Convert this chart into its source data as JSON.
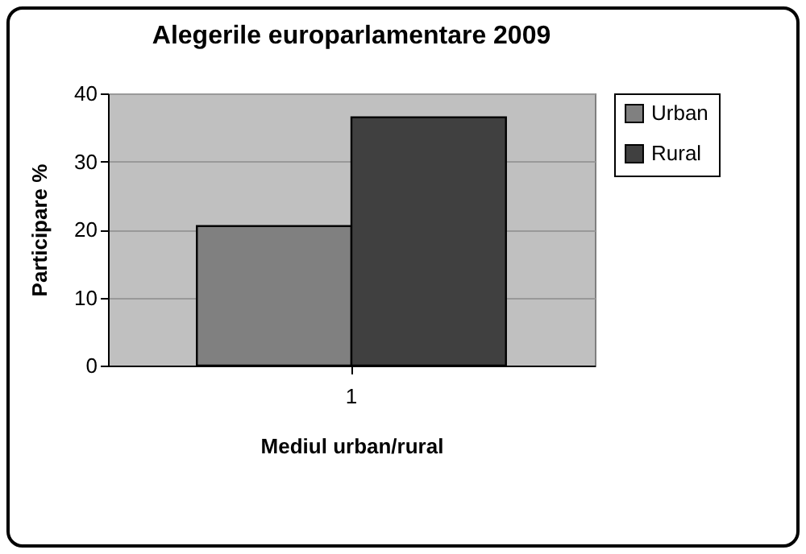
{
  "chart_data": {
    "type": "bar",
    "title": "Alegerile europarlamentare 2009",
    "xlabel": "Mediul urban/rural",
    "ylabel": "Participare %",
    "categories": [
      "1"
    ],
    "series": [
      {
        "name": "Urban",
        "color": "#808080",
        "values": [
          20.5
        ]
      },
      {
        "name": "Rural",
        "color": "#404040",
        "values": [
          36.5
        ]
      }
    ],
    "ylim": [
      0,
      40
    ],
    "yticks": [
      0,
      10,
      20,
      30,
      40
    ],
    "grid": "y",
    "legend": "right"
  }
}
